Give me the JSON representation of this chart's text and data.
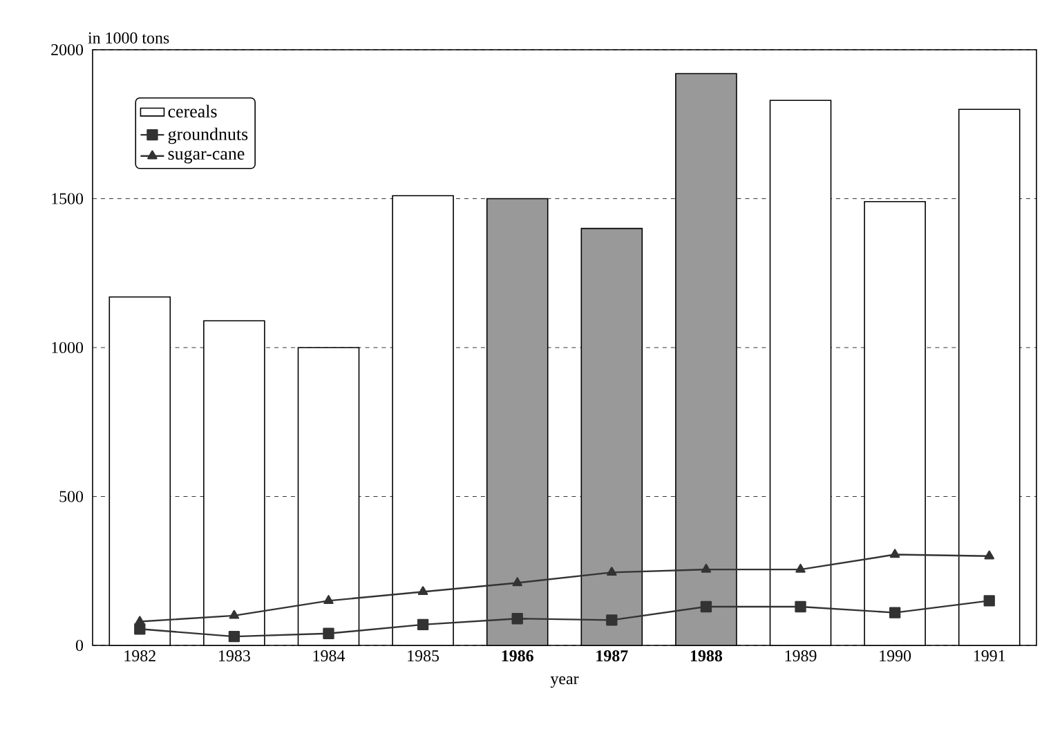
{
  "chart_data": {
    "type": "bar",
    "xlabel": "year",
    "ylabel": "in 1000 tons",
    "categories": [
      "1982",
      "1983",
      "1984",
      "1985",
      "**1986**",
      "**1987**",
      "**1988**",
      "1989",
      "1990",
      "1991"
    ],
    "series": [
      {
        "name": "cereals",
        "colors": [
          "#ffffff",
          "#ffffff",
          "#ffffff",
          "#ffffff",
          "#999999",
          "#999999",
          "#999999",
          "#ffffff",
          "#ffffff",
          "#ffffff"
        ],
        "values": [
          1170,
          1090,
          1000,
          1510,
          1500,
          1400,
          1920,
          1830,
          1490,
          1800
        ]
      },
      {
        "name": "groundnuts",
        "type": "line",
        "color": "#333333",
        "marker": "square",
        "values": [
          55,
          30,
          40,
          70,
          90,
          85,
          130,
          130,
          110,
          150
        ]
      },
      {
        "name": "sugar-cane",
        "type": "line",
        "color": "#333333",
        "marker": "triangle",
        "values": [
          80,
          100,
          150,
          180,
          210,
          245,
          255,
          255,
          305,
          300
        ]
      }
    ],
    "ylim": [
      0,
      2000
    ],
    "yticks": [
      0,
      500,
      1000,
      1500,
      2000
    ],
    "grid": "y",
    "legend": "top left"
  }
}
